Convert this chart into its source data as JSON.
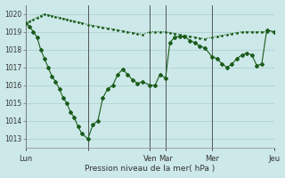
{
  "background_color": "#cce8e8",
  "grid_color": "#aacccc",
  "line_color": "#1a5c1a",
  "marker_color": "#1a5c1a",
  "xlabel": "Pression niveau de la mer( hPa )",
  "ylim": [
    1012.5,
    1020.5
  ],
  "yticks": [
    1013,
    1014,
    1015,
    1016,
    1017,
    1018,
    1019,
    1020
  ],
  "xlim": [
    0,
    100
  ],
  "day_positions": [
    0,
    25,
    50,
    56.25,
    75,
    100
  ],
  "day_labels": [
    "Lun",
    "",
    "Ven",
    "Mar",
    "Mer",
    "Jeu"
  ],
  "series1_x": [
    0,
    1.5,
    3,
    4.5,
    6,
    7.5,
    9,
    10.5,
    12,
    13.5,
    15,
    16.5,
    18,
    19.5,
    21,
    22.5,
    25,
    27,
    29,
    31,
    33,
    35,
    37,
    39,
    41,
    43,
    45,
    47,
    50,
    52,
    54,
    56.25,
    58,
    60,
    62,
    64,
    66,
    68,
    70,
    72,
    75,
    77,
    79,
    81,
    83,
    85,
    87,
    89,
    91,
    93,
    95,
    97,
    100
  ],
  "series1_y": [
    1019.5,
    1019.6,
    1019.7,
    1019.8,
    1019.9,
    1020.0,
    1019.95,
    1019.9,
    1019.85,
    1019.8,
    1019.75,
    1019.7,
    1019.65,
    1019.6,
    1019.55,
    1019.5,
    1019.4,
    1019.35,
    1019.3,
    1019.25,
    1019.2,
    1019.15,
    1019.1,
    1019.05,
    1019.0,
    1018.95,
    1018.9,
    1018.85,
    1019.0,
    1019.0,
    1019.0,
    1019.0,
    1018.95,
    1018.9,
    1018.85,
    1018.8,
    1018.75,
    1018.7,
    1018.65,
    1018.6,
    1018.7,
    1018.75,
    1018.8,
    1018.85,
    1018.9,
    1018.95,
    1019.0,
    1019.0,
    1019.0,
    1019.0,
    1019.0,
    1019.0,
    1019.0
  ],
  "series2_x": [
    0,
    1.5,
    3,
    4.5,
    6,
    7.5,
    9,
    10.5,
    12,
    13.5,
    15,
    16.5,
    18,
    19.5,
    21,
    22.5,
    25,
    27,
    29,
    31,
    33,
    35,
    37,
    39,
    41,
    43,
    45,
    47,
    50,
    52,
    54,
    56.25,
    58,
    60,
    62,
    64,
    66,
    68,
    70,
    72,
    75,
    77,
    79,
    81,
    83,
    85,
    87,
    89,
    91,
    93,
    95,
    97,
    100
  ],
  "series2_y": [
    1019.5,
    1019.3,
    1019.0,
    1018.7,
    1018.0,
    1017.5,
    1017.0,
    1016.5,
    1016.2,
    1015.8,
    1015.3,
    1015.0,
    1014.5,
    1014.2,
    1013.7,
    1013.3,
    1013.0,
    1013.8,
    1014.0,
    1015.3,
    1015.8,
    1016.0,
    1016.6,
    1016.9,
    1016.6,
    1016.3,
    1016.1,
    1016.2,
    1016.0,
    1016.0,
    1016.6,
    1016.4,
    1018.4,
    1018.7,
    1018.75,
    1018.75,
    1018.5,
    1018.4,
    1018.2,
    1018.1,
    1017.6,
    1017.5,
    1017.2,
    1017.0,
    1017.2,
    1017.5,
    1017.7,
    1017.8,
    1017.7,
    1017.1,
    1017.2,
    1019.1,
    1019.0
  ]
}
